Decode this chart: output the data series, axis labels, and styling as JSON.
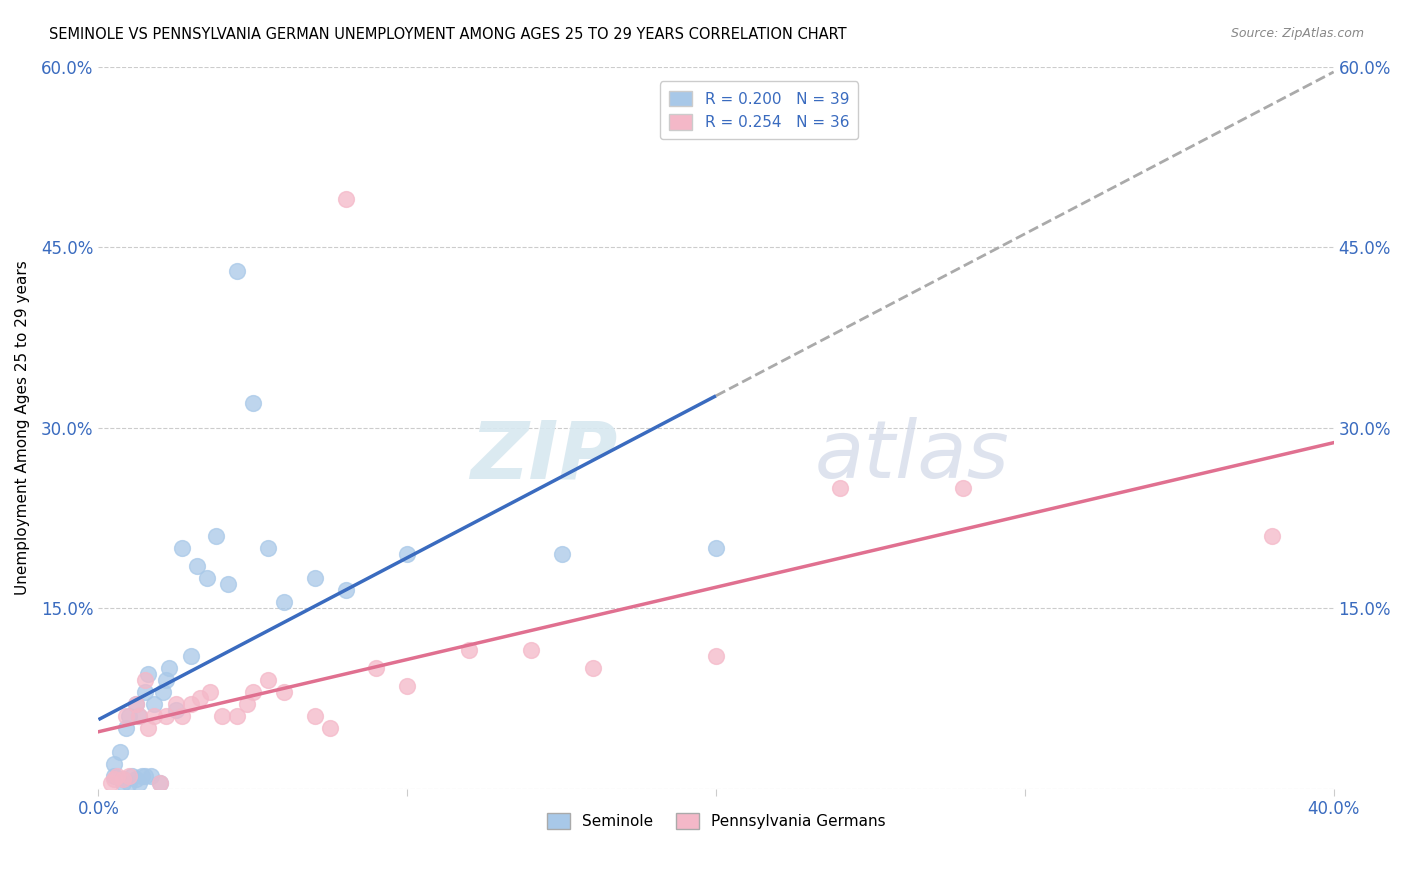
{
  "title": "SEMINOLE VS PENNSYLVANIA GERMAN UNEMPLOYMENT AMONG AGES 25 TO 29 YEARS CORRELATION CHART",
  "source": "Source: ZipAtlas.com",
  "ylabel": "Unemployment Among Ages 25 to 29 years",
  "xlim": [
    0.0,
    0.4
  ],
  "ylim": [
    0.0,
    0.6
  ],
  "xticks": [
    0.0,
    0.1,
    0.2,
    0.3,
    0.4
  ],
  "yticks": [
    0.0,
    0.15,
    0.3,
    0.45,
    0.6
  ],
  "xticklabels": [
    "0.0%",
    "",
    "",
    "",
    "40.0%"
  ],
  "yticklabels": [
    "",
    "15.0%",
    "30.0%",
    "45.0%",
    "60.0%"
  ],
  "right_yticklabels": [
    "",
    "15.0%",
    "30.0%",
    "45.0%",
    "60.0%"
  ],
  "seminole_r": 0.2,
  "seminole_n": 39,
  "pg_r": 0.254,
  "pg_n": 36,
  "seminole_color": "#a8c8e8",
  "pg_color": "#f4b8c8",
  "regression_blue": "#3a6bbf",
  "regression_pink": "#e07090",
  "regression_dashed": "#aaaaaa",
  "legend_label_blue": "Seminole",
  "legend_label_pink": "Pennsylvania Germans",
  "watermark_zip": "ZIP",
  "watermark_atlas": "atlas",
  "seminole_x": [
    0.005,
    0.005,
    0.007,
    0.008,
    0.008,
    0.009,
    0.01,
    0.01,
    0.011,
    0.012,
    0.012,
    0.013,
    0.013,
    0.014,
    0.015,
    0.015,
    0.016,
    0.017,
    0.018,
    0.02,
    0.021,
    0.022,
    0.023,
    0.025,
    0.027,
    0.03,
    0.032,
    0.035,
    0.038,
    0.042,
    0.045,
    0.05,
    0.055,
    0.06,
    0.07,
    0.08,
    0.1,
    0.15,
    0.2
  ],
  "seminole_y": [
    0.01,
    0.02,
    0.03,
    0.005,
    0.008,
    0.05,
    0.005,
    0.06,
    0.01,
    0.008,
    0.07,
    0.06,
    0.005,
    0.01,
    0.08,
    0.01,
    0.095,
    0.01,
    0.07,
    0.005,
    0.08,
    0.09,
    0.1,
    0.065,
    0.2,
    0.11,
    0.185,
    0.175,
    0.21,
    0.17,
    0.43,
    0.32,
    0.2,
    0.155,
    0.175,
    0.165,
    0.195,
    0.195,
    0.2
  ],
  "pg_x": [
    0.004,
    0.005,
    0.006,
    0.008,
    0.009,
    0.01,
    0.012,
    0.013,
    0.015,
    0.016,
    0.018,
    0.02,
    0.022,
    0.025,
    0.027,
    0.03,
    0.033,
    0.036,
    0.04,
    0.045,
    0.048,
    0.05,
    0.055,
    0.06,
    0.07,
    0.075,
    0.08,
    0.09,
    0.1,
    0.12,
    0.14,
    0.16,
    0.2,
    0.24,
    0.28,
    0.38
  ],
  "pg_y": [
    0.005,
    0.008,
    0.01,
    0.008,
    0.06,
    0.01,
    0.07,
    0.06,
    0.09,
    0.05,
    0.06,
    0.005,
    0.06,
    0.07,
    0.06,
    0.07,
    0.075,
    0.08,
    0.06,
    0.06,
    0.07,
    0.08,
    0.09,
    0.08,
    0.06,
    0.05,
    0.49,
    0.1,
    0.085,
    0.115,
    0.115,
    0.1,
    0.11,
    0.25,
    0.25,
    0.21
  ]
}
